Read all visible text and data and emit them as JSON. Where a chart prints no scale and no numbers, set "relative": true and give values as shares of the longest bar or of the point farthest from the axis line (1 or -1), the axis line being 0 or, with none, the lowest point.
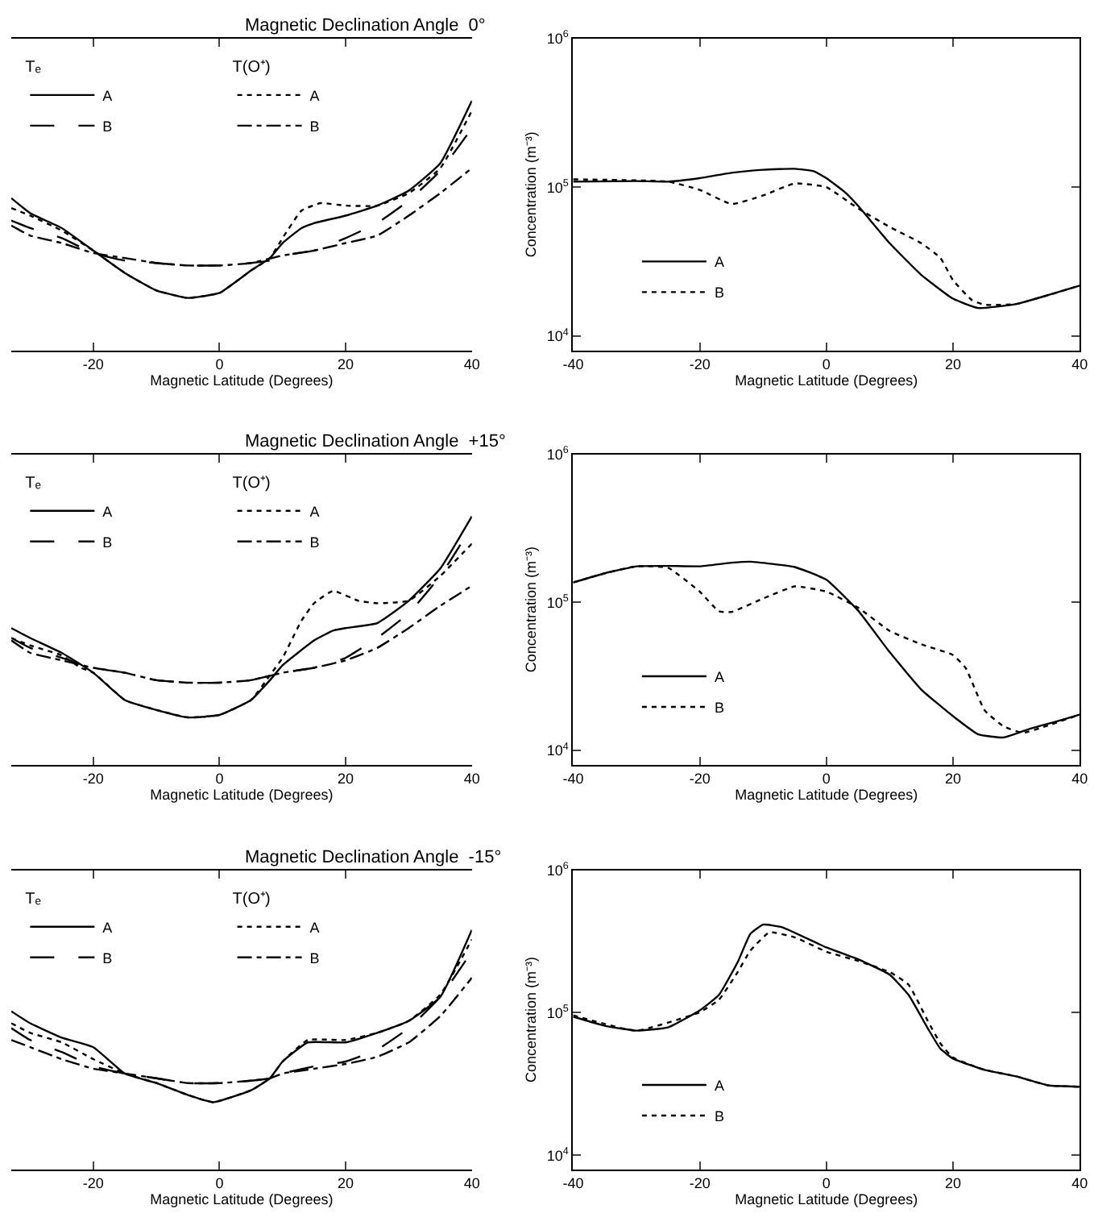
{
  "chart_data": [
    {
      "type": "line",
      "title": "Magnetic Declination Angle  0°",
      "xlabel": "Magnetic Latitude (Degrees)",
      "xlim": [
        -33,
        40
      ],
      "xticks": [
        -20,
        0,
        20,
        40
      ],
      "relative": true,
      "legend": "top left",
      "annotations": [
        "Tₑ",
        "T(O⁺)"
      ],
      "series": [
        {
          "name": "A",
          "color": "#000000",
          "line_style": "solid",
          "x": [
            -33,
            -30,
            -25,
            -20,
            -15,
            -10,
            -5,
            0,
            5,
            8,
            10,
            13,
            15,
            20,
            25,
            30,
            35,
            40
          ],
          "values": [
            0.61,
            0.55,
            0.49,
            0.4,
            0.31,
            0.24,
            0.21,
            0.23,
            0.32,
            0.37,
            0.43,
            0.49,
            0.51,
            0.54,
            0.58,
            0.64,
            0.75,
            1.0
          ]
        },
        {
          "name": "B",
          "color": "#000000",
          "line_style": "dashed",
          "x": [
            -33,
            -30,
            -25,
            -20,
            -15,
            -10,
            -5,
            0,
            5,
            8,
            10,
            15,
            20,
            25,
            30,
            35,
            40
          ],
          "values": [
            0.52,
            0.49,
            0.45,
            0.39,
            0.36,
            0.35,
            0.34,
            0.34,
            0.35,
            0.36,
            0.38,
            0.4,
            0.45,
            0.51,
            0.6,
            0.72,
            0.89
          ]
        },
        {
          "name": "A",
          "color": "#000000",
          "line_style": "dotted",
          "x": [
            -33,
            -30,
            -25,
            -20,
            -15,
            -10,
            -5,
            0,
            5,
            8,
            10,
            13,
            16,
            20,
            25,
            30,
            35,
            40
          ],
          "values": [
            0.57,
            0.54,
            0.48,
            0.4,
            0.31,
            0.24,
            0.21,
            0.23,
            0.32,
            0.37,
            0.45,
            0.56,
            0.59,
            0.58,
            0.58,
            0.63,
            0.73,
            0.96
          ]
        },
        {
          "name": "B",
          "color": "#000000",
          "line_style": "dashdot",
          "x": [
            -33,
            -30,
            -25,
            -20,
            -15,
            -10,
            -5,
            0,
            5,
            10,
            15,
            20,
            25,
            30,
            35,
            40
          ],
          "values": [
            0.5,
            0.46,
            0.43,
            0.39,
            0.37,
            0.35,
            0.34,
            0.34,
            0.35,
            0.38,
            0.4,
            0.43,
            0.46,
            0.54,
            0.63,
            0.73
          ]
        }
      ]
    },
    {
      "type": "line",
      "xlabel": "Magnetic Latitude (Degrees)",
      "ylabel": "Concentration (m⁻³)",
      "xlim": [
        -40,
        40
      ],
      "xticks": [
        -40,
        -20,
        0,
        20,
        40
      ],
      "log": "y",
      "ylim": [
        8000,
        1000000
      ],
      "yticks": [
        {
          "value": 10000,
          "label": "10$^{4}$"
        },
        {
          "value": 100000,
          "label": "10$^{5}$"
        },
        {
          "value": 1000000,
          "label": "10$^{6}$"
        }
      ],
      "legend": "bottom left",
      "series": [
        {
          "name": "A",
          "color": "#000000",
          "line_style": "solid",
          "x": [
            -40,
            -30,
            -25,
            -20,
            -15,
            -10,
            -5,
            -2,
            0,
            3,
            5,
            10,
            15,
            20,
            24,
            30,
            35,
            40
          ],
          "values": [
            109000,
            110000,
            109000,
            115000,
            125000,
            131000,
            133000,
            128000,
            115000,
            92000,
            75000,
            42000,
            25700,
            17800,
            15400,
            16400,
            18800,
            21800
          ]
        },
        {
          "name": "B",
          "color": "#000000",
          "line_style": "dotted",
          "x": [
            -40,
            -25,
            -20,
            -15,
            -10,
            -5,
            0,
            5,
            10,
            15,
            18,
            20,
            23,
            25,
            30,
            35,
            40
          ],
          "values": [
            113000,
            109000,
            96000,
            77000,
            88000,
            106000,
            100000,
            72000,
            54000,
            42000,
            33500,
            23700,
            17400,
            16200,
            16400,
            18800,
            21800
          ]
        }
      ]
    },
    {
      "type": "line",
      "title": "Magnetic Declination Angle  +15°",
      "xlabel": "Magnetic Latitude (Degrees)",
      "xlim": [
        -33,
        40
      ],
      "xticks": [
        -20,
        0,
        20,
        40
      ],
      "relative": true,
      "legend": "top left",
      "annotations": [
        "Tₑ",
        "T(O⁺)"
      ],
      "series": [
        {
          "name": "A",
          "color": "#000000",
          "line_style": "solid",
          "x": [
            -33,
            -30,
            -25,
            -20,
            -15,
            -10,
            -5,
            0,
            5,
            8,
            10,
            15,
            18,
            20,
            25,
            30,
            35,
            40
          ],
          "values": [
            0.55,
            0.51,
            0.45,
            0.37,
            0.26,
            0.22,
            0.19,
            0.2,
            0.26,
            0.34,
            0.4,
            0.5,
            0.54,
            0.55,
            0.57,
            0.66,
            0.79,
            1.0
          ]
        },
        {
          "name": "B",
          "color": "#000000",
          "line_style": "dashed",
          "x": [
            -33,
            -30,
            -25,
            -20,
            -15,
            -10,
            -5,
            0,
            5,
            10,
            15,
            20,
            25,
            30,
            35,
            40
          ],
          "values": [
            0.51,
            0.47,
            0.43,
            0.39,
            0.37,
            0.34,
            0.33,
            0.33,
            0.34,
            0.37,
            0.39,
            0.43,
            0.51,
            0.61,
            0.76,
            0.96
          ]
        },
        {
          "name": "A",
          "color": "#000000",
          "line_style": "dotted",
          "x": [
            -33,
            -30,
            -25,
            -22,
            -20,
            -15,
            -10,
            -5,
            0,
            5,
            8,
            10,
            13,
            15,
            18,
            22,
            25,
            30,
            35,
            40
          ],
          "values": [
            0.51,
            0.48,
            0.44,
            0.39,
            0.37,
            0.26,
            0.22,
            0.19,
            0.2,
            0.26,
            0.36,
            0.43,
            0.58,
            0.65,
            0.7,
            0.66,
            0.65,
            0.66,
            0.76,
            0.89
          ]
        },
        {
          "name": "B",
          "color": "#000000",
          "line_style": "dashdot",
          "x": [
            -33,
            -30,
            -25,
            -20,
            -15,
            -10,
            -5,
            0,
            5,
            10,
            15,
            20,
            25,
            30,
            35,
            40
          ],
          "values": [
            0.5,
            0.45,
            0.42,
            0.39,
            0.37,
            0.34,
            0.33,
            0.33,
            0.34,
            0.37,
            0.39,
            0.42,
            0.47,
            0.55,
            0.64,
            0.72
          ]
        }
      ]
    },
    {
      "type": "line",
      "xlabel": "Magnetic Latitude (Degrees)",
      "ylabel": "Concentration (m⁻³)",
      "xlim": [
        -40,
        40
      ],
      "xticks": [
        -40,
        -20,
        0,
        20,
        40
      ],
      "log": "y",
      "ylim": [
        8000,
        1000000
      ],
      "yticks": [
        {
          "value": 10000,
          "label": "10$^{4}$"
        },
        {
          "value": 100000,
          "label": "10$^{5}$"
        },
        {
          "value": 1000000,
          "label": "10$^{6}$"
        }
      ],
      "legend": "bottom left",
      "series": [
        {
          "name": "A",
          "color": "#000000",
          "line_style": "solid",
          "x": [
            -40,
            -35,
            -30,
            -25,
            -20,
            -15,
            -12,
            -5,
            0,
            5,
            10,
            15,
            20,
            24,
            28,
            32,
            36,
            40
          ],
          "values": [
            136000,
            157000,
            175000,
            176000,
            175000,
            185000,
            188000,
            173000,
            142000,
            88000,
            46000,
            25700,
            17000,
            12800,
            12200,
            13900,
            15500,
            17400
          ]
        },
        {
          "name": "B",
          "color": "#000000",
          "line_style": "dotted",
          "x": [
            -40,
            -35,
            -30,
            -25,
            -20,
            -17,
            -15,
            -10,
            -5,
            0,
            5,
            10,
            15,
            20,
            22,
            25,
            28,
            31,
            35,
            40
          ],
          "values": [
            136000,
            157000,
            175000,
            171000,
            118000,
            87000,
            86000,
            106000,
            128000,
            118000,
            92000,
            64000,
            52000,
            44000,
            36000,
            18600,
            14500,
            13100,
            14700,
            17400
          ]
        }
      ]
    },
    {
      "type": "line",
      "title": "Magnetic Declination Angle  -15°",
      "xlabel": "Magnetic Latitude (Degrees)",
      "xlim": [
        -33,
        40
      ],
      "xticks": [
        -20,
        0,
        20,
        40
      ],
      "relative": true,
      "legend": "top left",
      "annotations": [
        "Tₑ",
        "T(O⁺)"
      ],
      "series": [
        {
          "name": "A",
          "color": "#000000",
          "line_style": "solid",
          "x": [
            -33,
            -30,
            -25,
            -20,
            -15,
            -10,
            -5,
            -1,
            5,
            8,
            10,
            14,
            20,
            25,
            30,
            35,
            40
          ],
          "values": [
            0.66,
            0.61,
            0.55,
            0.51,
            0.4,
            0.36,
            0.31,
            0.28,
            0.33,
            0.38,
            0.45,
            0.53,
            0.53,
            0.57,
            0.62,
            0.72,
            1.0
          ]
        },
        {
          "name": "B",
          "color": "#000000",
          "line_style": "dashed",
          "x": [
            -33,
            -30,
            -25,
            -20,
            -15,
            -10,
            -5,
            0,
            5,
            8,
            10,
            15,
            20,
            25,
            30,
            35,
            40
          ],
          "values": [
            0.59,
            0.54,
            0.49,
            0.43,
            0.4,
            0.38,
            0.36,
            0.36,
            0.37,
            0.38,
            0.4,
            0.43,
            0.45,
            0.5,
            0.59,
            0.72,
            0.91
          ]
        },
        {
          "name": "A",
          "color": "#000000",
          "line_style": "dotted",
          "x": [
            -33,
            -30,
            -25,
            -20,
            -15,
            -10,
            -5,
            -1,
            5,
            8,
            10,
            14,
            20,
            25,
            30,
            35,
            40
          ],
          "values": [
            0.61,
            0.57,
            0.53,
            0.46,
            0.4,
            0.36,
            0.31,
            0.28,
            0.33,
            0.38,
            0.45,
            0.54,
            0.54,
            0.57,
            0.62,
            0.73,
            0.96
          ]
        },
        {
          "name": "B",
          "color": "#000000",
          "line_style": "dashdot",
          "x": [
            -33,
            -30,
            -25,
            -20,
            -15,
            -10,
            -5,
            0,
            5,
            8,
            10,
            15,
            20,
            25,
            30,
            35,
            40
          ],
          "values": [
            0.54,
            0.51,
            0.46,
            0.42,
            0.4,
            0.38,
            0.36,
            0.36,
            0.37,
            0.38,
            0.4,
            0.42,
            0.44,
            0.47,
            0.53,
            0.64,
            0.8
          ]
        }
      ]
    },
    {
      "type": "line",
      "xlabel": "Magnetic Latitude (Degrees)",
      "ylabel": "Concentration (m⁻³)",
      "xlim": [
        -40,
        40
      ],
      "xticks": [
        -40,
        -20,
        0,
        20,
        40
      ],
      "log": "y",
      "ylim": [
        8000,
        1000000
      ],
      "yticks": [
        {
          "value": 10000,
          "label": "10$^{4}$"
        },
        {
          "value": 100000,
          "label": "10$^{5}$"
        },
        {
          "value": 1000000,
          "label": "10$^{6}$"
        }
      ],
      "legend": "bottom left",
      "series": [
        {
          "name": "A",
          "color": "#000000",
          "line_style": "solid",
          "x": [
            -40,
            -35,
            -30,
            -25,
            -20,
            -17,
            -14,
            -12,
            -10,
            -7,
            0,
            5,
            10,
            13,
            16,
            18,
            20,
            25,
            30,
            35,
            40
          ],
          "values": [
            94000,
            81000,
            75000,
            79000,
            104000,
            133000,
            227000,
            358000,
            415000,
            398000,
            287000,
            237000,
            185000,
            133000,
            78000,
            56000,
            47700,
            39800,
            35800,
            31000,
            30300
          ]
        },
        {
          "name": "B",
          "color": "#000000",
          "line_style": "dotted",
          "x": [
            -40,
            -30,
            -20,
            -17,
            -14,
            -12,
            -9,
            -5,
            0,
            5,
            10,
            13,
            16,
            18,
            20,
            25,
            30,
            35,
            40
          ],
          "values": [
            96000,
            75000,
            101000,
            123000,
            193000,
            273000,
            366000,
            338000,
            268000,
            231000,
            193000,
            157000,
            88000,
            61000,
            48500,
            39800,
            35800,
            31000,
            30300
          ]
        }
      ]
    }
  ]
}
